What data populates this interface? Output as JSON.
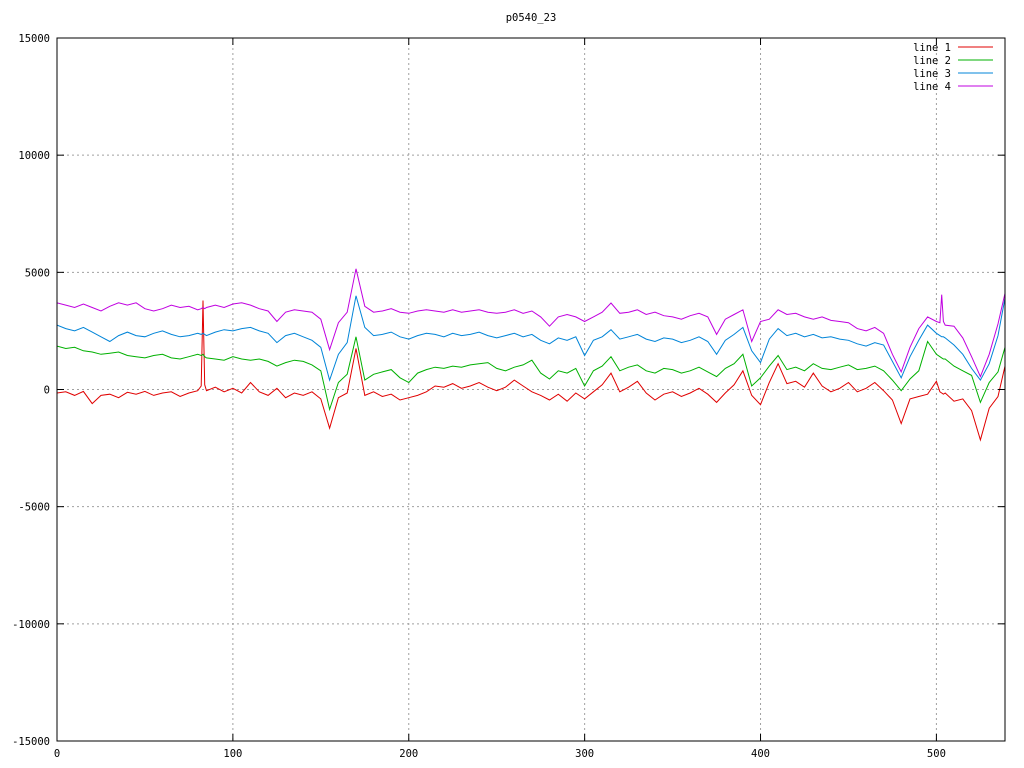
{
  "page": {
    "background": "#ffffff"
  },
  "chart_data": {
    "type": "line",
    "title": "p0540_23",
    "xlabel": "",
    "ylabel": "",
    "xlim": [
      0,
      539
    ],
    "ylim": [
      -15000,
      15000
    ],
    "x_ticks": [
      0,
      100,
      200,
      300,
      400,
      500
    ],
    "y_ticks": [
      -15000,
      -10000,
      -5000,
      0,
      5000,
      10000,
      15000
    ],
    "grid": "dotted",
    "grid_color": "#a0a0a0",
    "border_color": "#000000",
    "legend_position": "top-right",
    "x": [
      0,
      5,
      10,
      15,
      20,
      25,
      30,
      35,
      40,
      45,
      50,
      55,
      60,
      65,
      70,
      75,
      80,
      82,
      83,
      84,
      85,
      90,
      95,
      100,
      105,
      110,
      115,
      120,
      125,
      130,
      135,
      140,
      145,
      150,
      155,
      160,
      165,
      170,
      175,
      180,
      185,
      190,
      195,
      200,
      205,
      210,
      215,
      220,
      225,
      230,
      235,
      240,
      245,
      250,
      255,
      260,
      265,
      270,
      275,
      280,
      285,
      290,
      295,
      300,
      305,
      310,
      315,
      320,
      325,
      330,
      335,
      340,
      345,
      350,
      355,
      360,
      365,
      370,
      375,
      380,
      385,
      390,
      395,
      400,
      405,
      410,
      415,
      420,
      425,
      430,
      435,
      440,
      445,
      450,
      455,
      460,
      465,
      470,
      475,
      480,
      485,
      490,
      495,
      500,
      502,
      503,
      504,
      505,
      510,
      515,
      520,
      525,
      530,
      535,
      539
    ],
    "series": [
      {
        "name": "line 1",
        "color": "#e00000",
        "values": [
          -150,
          -100,
          -250,
          -80,
          -600,
          -250,
          -200,
          -350,
          -120,
          -200,
          -80,
          -250,
          -150,
          -100,
          -300,
          -150,
          -50,
          150,
          3800,
          200,
          -50,
          100,
          -100,
          50,
          -150,
          300,
          -100,
          -250,
          50,
          -350,
          -150,
          -250,
          -100,
          -400,
          -1650,
          -350,
          -150,
          1750,
          -250,
          -100,
          -300,
          -200,
          -450,
          -350,
          -250,
          -100,
          150,
          100,
          250,
          50,
          150,
          300,
          100,
          -50,
          100,
          400,
          150,
          -100,
          -250,
          -450,
          -200,
          -500,
          -150,
          -400,
          -100,
          200,
          700,
          -100,
          100,
          350,
          -150,
          -450,
          -200,
          -100,
          -300,
          -150,
          50,
          -200,
          -550,
          -150,
          200,
          800,
          -250,
          -650,
          300,
          1100,
          250,
          350,
          100,
          700,
          150,
          -100,
          50,
          300,
          -100,
          50,
          300,
          -50,
          -450,
          -1450,
          -400,
          -300,
          -200,
          350,
          -100,
          -150,
          -200,
          -150,
          -500,
          -400,
          -900,
          -2150,
          -800,
          -300,
          1000
        ]
      },
      {
        "name": "line 2",
        "color": "#00b000",
        "values": [
          1850,
          1750,
          1800,
          1650,
          1600,
          1500,
          1550,
          1600,
          1450,
          1400,
          1350,
          1450,
          1500,
          1350,
          1300,
          1400,
          1500,
          1450,
          1500,
          1400,
          1350,
          1300,
          1250,
          1400,
          1300,
          1250,
          1300,
          1200,
          1000,
          1150,
          1250,
          1200,
          1050,
          800,
          -850,
          300,
          650,
          2250,
          400,
          650,
          750,
          850,
          500,
          300,
          700,
          850,
          950,
          900,
          1000,
          950,
          1050,
          1100,
          1150,
          900,
          800,
          950,
          1050,
          1250,
          700,
          450,
          800,
          700,
          900,
          150,
          800,
          1000,
          1400,
          800,
          950,
          1050,
          800,
          700,
          900,
          850,
          700,
          800,
          950,
          750,
          550,
          900,
          1100,
          1500,
          150,
          500,
          1000,
          1450,
          850,
          950,
          800,
          1100,
          900,
          850,
          950,
          1050,
          850,
          900,
          1000,
          800,
          400,
          -50,
          450,
          800,
          2050,
          1500,
          1400,
          1350,
          1300,
          1300,
          1000,
          800,
          600,
          -550,
          300,
          750,
          1800
        ]
      },
      {
        "name": "line 3",
        "color": "#0084d8",
        "values": [
          2750,
          2600,
          2500,
          2650,
          2450,
          2250,
          2050,
          2300,
          2450,
          2300,
          2250,
          2400,
          2500,
          2350,
          2250,
          2300,
          2400,
          2350,
          2400,
          2350,
          2300,
          2450,
          2550,
          2500,
          2600,
          2650,
          2500,
          2400,
          2000,
          2300,
          2400,
          2250,
          2100,
          1800,
          400,
          1500,
          2000,
          4000,
          2650,
          2300,
          2350,
          2450,
          2250,
          2150,
          2300,
          2400,
          2350,
          2250,
          2400,
          2300,
          2350,
          2450,
          2300,
          2200,
          2300,
          2400,
          2250,
          2350,
          2100,
          1950,
          2200,
          2100,
          2250,
          1450,
          2100,
          2250,
          2550,
          2150,
          2250,
          2350,
          2150,
          2050,
          2200,
          2150,
          2000,
          2100,
          2250,
          2050,
          1500,
          2100,
          2350,
          2650,
          1650,
          1150,
          2150,
          2600,
          2300,
          2400,
          2250,
          2350,
          2200,
          2250,
          2150,
          2100,
          1950,
          1850,
          2000,
          1900,
          1200,
          500,
          1400,
          2100,
          2750,
          2400,
          2300,
          2250,
          2250,
          2200,
          1900,
          1500,
          900,
          400,
          1100,
          2300,
          3900
        ]
      },
      {
        "name": "line 4",
        "color": "#c000e0",
        "values": [
          3700,
          3600,
          3500,
          3650,
          3500,
          3350,
          3550,
          3700,
          3600,
          3700,
          3450,
          3350,
          3450,
          3600,
          3500,
          3550,
          3400,
          3450,
          3500,
          3450,
          3500,
          3600,
          3500,
          3650,
          3700,
          3600,
          3450,
          3350,
          2900,
          3300,
          3400,
          3350,
          3300,
          3000,
          1700,
          2850,
          3300,
          5150,
          3550,
          3300,
          3350,
          3450,
          3300,
          3250,
          3350,
          3400,
          3350,
          3300,
          3400,
          3300,
          3350,
          3400,
          3300,
          3250,
          3300,
          3400,
          3250,
          3350,
          3100,
          2700,
          3100,
          3200,
          3100,
          2900,
          3100,
          3300,
          3690,
          3250,
          3300,
          3400,
          3200,
          3300,
          3150,
          3100,
          3000,
          3150,
          3250,
          3100,
          2350,
          3000,
          3200,
          3400,
          2050,
          2900,
          3000,
          3400,
          3200,
          3250,
          3100,
          3000,
          3100,
          2950,
          2900,
          2850,
          2600,
          2500,
          2650,
          2400,
          1500,
          750,
          1800,
          2600,
          3100,
          2900,
          2850,
          4050,
          2900,
          2750,
          2700,
          2200,
          1400,
          550,
          1500,
          2800,
          4100
        ]
      }
    ]
  }
}
